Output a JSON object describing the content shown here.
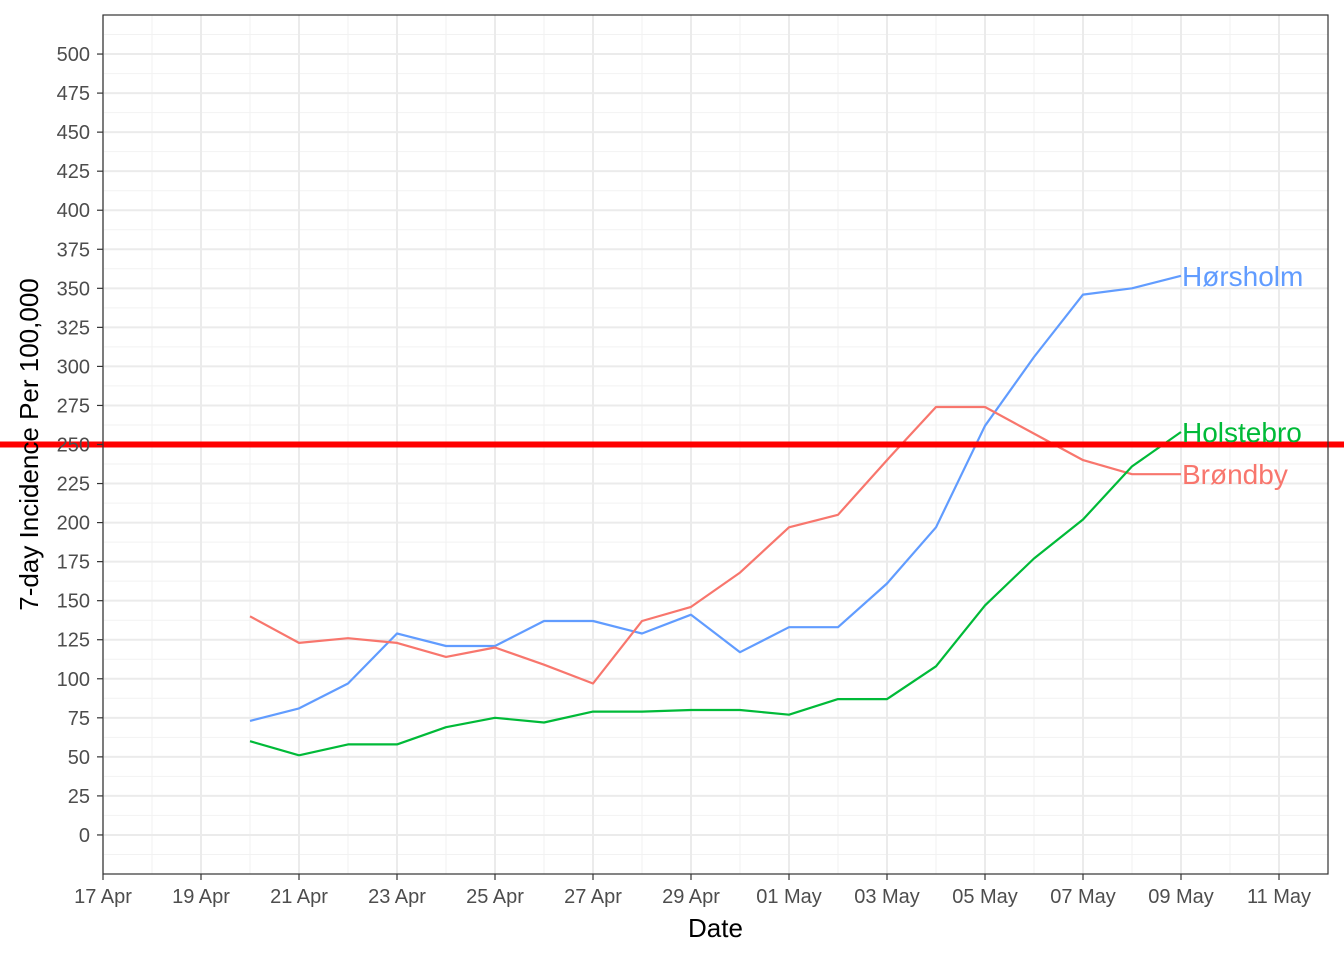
{
  "chart_data": {
    "type": "line",
    "title": "",
    "xlabel": "Date",
    "ylabel": "7-day Incidence Per 100,000",
    "x_axis": {
      "type": "date",
      "range": [
        "2021-04-17",
        "2021-05-12"
      ],
      "ticks": [
        "2021-04-17",
        "2021-04-19",
        "2021-04-21",
        "2021-04-23",
        "2021-04-25",
        "2021-04-27",
        "2021-04-29",
        "2021-05-01",
        "2021-05-03",
        "2021-05-05",
        "2021-05-07",
        "2021-05-09",
        "2021-05-11"
      ],
      "tick_labels": [
        "17 Apr",
        "19 Apr",
        "21 Apr",
        "23 Apr",
        "25 Apr",
        "27 Apr",
        "29 Apr",
        "01 May",
        "03 May",
        "05 May",
        "07 May",
        "09 May",
        "11 May"
      ]
    },
    "y_axis": {
      "range": [
        -25,
        525
      ],
      "ticks": [
        0,
        25,
        50,
        75,
        100,
        125,
        150,
        175,
        200,
        225,
        250,
        275,
        300,
        325,
        350,
        375,
        400,
        425,
        450,
        475,
        500
      ],
      "tick_labels": [
        "0",
        "25",
        "50",
        "75",
        "100",
        "125",
        "150",
        "175",
        "200",
        "225",
        "250",
        "275",
        "300",
        "325",
        "350",
        "375",
        "400",
        "425",
        "450",
        "475",
        "500"
      ]
    },
    "grid": true,
    "legend": "none (series labelled at line ends)",
    "reference_line": {
      "y": 250,
      "color": "#ff0000"
    },
    "series": [
      {
        "name": "Hørsholm",
        "color": "#619cff",
        "x": [
          "2021-04-20",
          "2021-04-21",
          "2021-04-22",
          "2021-04-23",
          "2021-04-24",
          "2021-04-25",
          "2021-04-26",
          "2021-04-27",
          "2021-04-28",
          "2021-04-29",
          "2021-04-30",
          "2021-05-01",
          "2021-05-02",
          "2021-05-03",
          "2021-05-04",
          "2021-05-05",
          "2021-05-06",
          "2021-05-07",
          "2021-05-08",
          "2021-05-09"
        ],
        "values": [
          73,
          81,
          97,
          129,
          121,
          121,
          137,
          137,
          129,
          141,
          117,
          133,
          133,
          161,
          197,
          262,
          306,
          346,
          350,
          358
        ]
      },
      {
        "name": "Brøndby",
        "color": "#f8766d",
        "x": [
          "2021-04-20",
          "2021-04-21",
          "2021-04-22",
          "2021-04-23",
          "2021-04-24",
          "2021-04-25",
          "2021-04-26",
          "2021-04-27",
          "2021-04-28",
          "2021-04-29",
          "2021-04-30",
          "2021-05-01",
          "2021-05-02",
          "2021-05-03",
          "2021-05-04",
          "2021-05-05",
          "2021-05-06",
          "2021-05-07",
          "2021-05-08",
          "2021-05-09"
        ],
        "values": [
          140,
          123,
          126,
          123,
          114,
          120,
          109,
          97,
          137,
          146,
          168,
          197,
          205,
          240,
          274,
          274,
          257,
          240,
          231,
          231
        ]
      },
      {
        "name": "Holstebro",
        "color": "#00ba38",
        "x": [
          "2021-04-20",
          "2021-04-21",
          "2021-04-22",
          "2021-04-23",
          "2021-04-24",
          "2021-04-25",
          "2021-04-26",
          "2021-04-27",
          "2021-04-28",
          "2021-04-29",
          "2021-04-30",
          "2021-05-01",
          "2021-05-02",
          "2021-05-03",
          "2021-05-04",
          "2021-05-05",
          "2021-05-06",
          "2021-05-07",
          "2021-05-08",
          "2021-05-09"
        ],
        "values": [
          60,
          51,
          58,
          58,
          69,
          75,
          72,
          79,
          79,
          80,
          80,
          77,
          87,
          87,
          108,
          147,
          177,
          202,
          236,
          258
        ]
      }
    ]
  }
}
